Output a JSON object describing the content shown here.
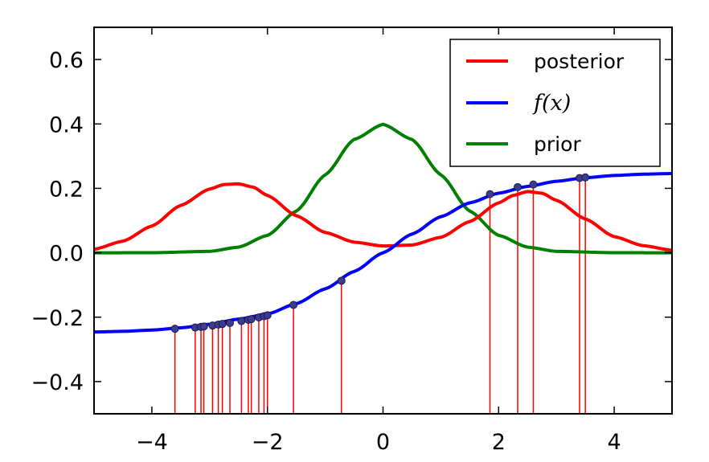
{
  "chart_data": {
    "type": "line",
    "title": "",
    "xlabel": "",
    "ylabel": "",
    "xlim": [
      -5,
      5
    ],
    "ylim": [
      -0.5,
      0.7
    ],
    "grid": false,
    "legend_position": "top-right",
    "x_ticks": [
      -4,
      -2,
      0,
      2,
      4
    ],
    "y_ticks": [
      -0.4,
      -0.2,
      0.0,
      0.2,
      0.4,
      0.6
    ],
    "x_tick_labels": [
      "−4",
      "−2",
      "0",
      "2",
      "4"
    ],
    "y_tick_labels": [
      "−0.4",
      "−0.2",
      "0.0",
      "0.2",
      "0.4",
      "0.6"
    ],
    "series": [
      {
        "name": "posterior",
        "color": "#ff0000",
        "x": [
          -5.0,
          -4.5,
          -4.0,
          -3.5,
          -3.0,
          -2.75,
          -2.5,
          -2.25,
          -2.0,
          -1.5,
          -1.0,
          -0.5,
          0.0,
          0.5,
          1.0,
          1.5,
          2.0,
          2.25,
          2.5,
          2.75,
          3.0,
          3.5,
          4.0,
          4.5,
          5.0
        ],
        "values": [
          0.011,
          0.036,
          0.083,
          0.147,
          0.198,
          0.212,
          0.214,
          0.204,
          0.178,
          0.115,
          0.063,
          0.033,
          0.021,
          0.024,
          0.048,
          0.097,
          0.155,
          0.178,
          0.19,
          0.185,
          0.163,
          0.105,
          0.05,
          0.022,
          0.008
        ]
      },
      {
        "name": "f(x)",
        "color": "#0000ff",
        "x": [
          -5.0,
          -4.5,
          -4.0,
          -3.5,
          -3.0,
          -2.5,
          -2.0,
          -1.5,
          -1.0,
          -0.5,
          0.0,
          0.5,
          1.0,
          1.5,
          2.0,
          2.5,
          3.0,
          3.5,
          4.0,
          4.5,
          5.0
        ],
        "values": [
          -0.246,
          -0.244,
          -0.24,
          -0.233,
          -0.222,
          -0.206,
          -0.19,
          -0.158,
          -0.112,
          -0.058,
          0.0,
          0.058,
          0.112,
          0.155,
          0.185,
          0.206,
          0.222,
          0.233,
          0.24,
          0.244,
          0.246
        ]
      },
      {
        "name": "prior",
        "color": "#007f00",
        "x": [
          -5.0,
          -4.0,
          -3.0,
          -2.5,
          -2.0,
          -1.5,
          -1.0,
          -0.5,
          0.0,
          0.5,
          1.0,
          1.5,
          2.0,
          2.5,
          3.0,
          4.0,
          5.0
        ],
        "values": [
          0.0,
          0.0001,
          0.0044,
          0.0175,
          0.054,
          0.1295,
          0.242,
          0.352,
          0.399,
          0.352,
          0.242,
          0.1295,
          0.054,
          0.0175,
          0.0044,
          0.0001,
          0.0
        ]
      }
    ],
    "samples": {
      "color": "#ff0000",
      "marker_color": "#3b3b8f",
      "x": [
        -3.6,
        -3.25,
        -3.15,
        -3.1,
        -2.95,
        -2.85,
        -2.78,
        -2.65,
        -2.45,
        -2.33,
        -2.28,
        -2.15,
        -2.06,
        -2.0,
        -1.55,
        -0.72,
        1.85,
        2.33,
        2.6,
        3.4,
        3.5
      ],
      "values": [
        -0.236,
        -0.232,
        -0.23,
        -0.229,
        -0.226,
        -0.223,
        -0.221,
        -0.218,
        -0.212,
        -0.208,
        -0.206,
        -0.201,
        -0.197,
        -0.194,
        -0.162,
        -0.087,
        0.182,
        0.204,
        0.212,
        0.232,
        0.234
      ]
    }
  }
}
